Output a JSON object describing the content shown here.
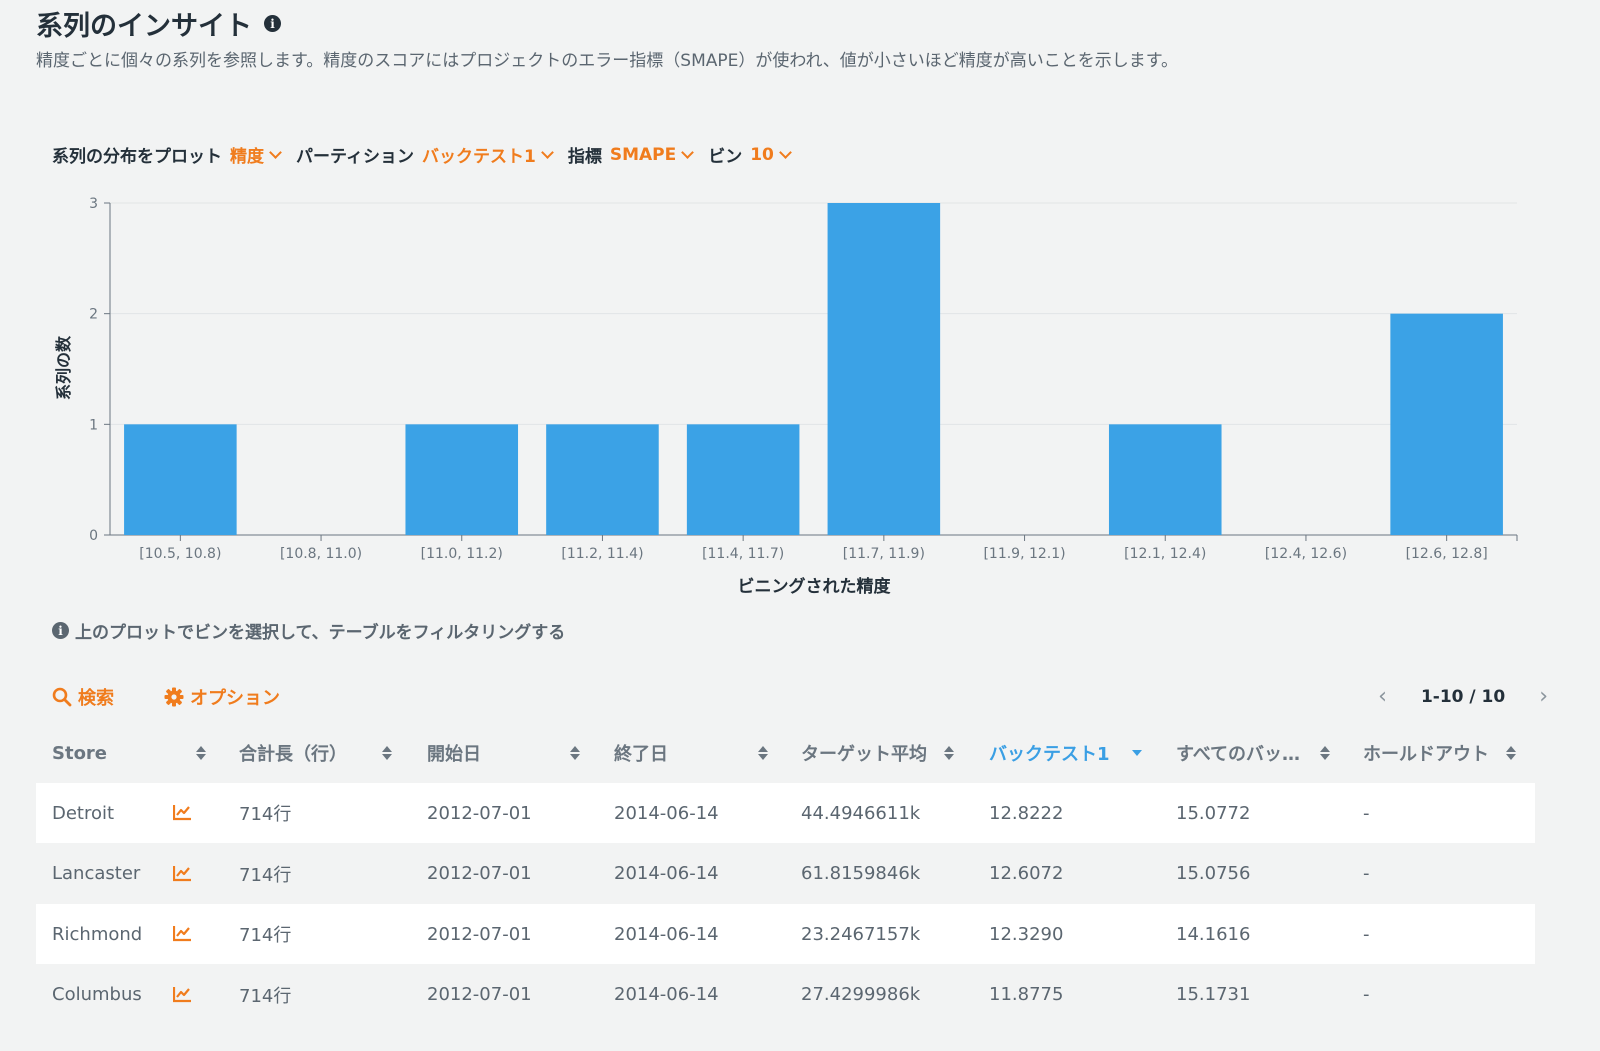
{
  "header": {
    "title": "系列のインサイト",
    "info_glyph": "i",
    "subtitle": "精度ごとに個々の系列を参照します。精度のスコアにはプロジェクトのエラー指標（SMAPE）が使われ、値が小さいほど精度が高いことを示します。"
  },
  "controls": {
    "plot_label": "系列の分布をプロット",
    "plot_value": "精度",
    "partition_label": "パーティション",
    "partition_value": "バックテスト1",
    "metric_label": "指標",
    "metric_value": "SMAPE",
    "bins_label": "ビン",
    "bins_value": "10"
  },
  "chart_data": {
    "type": "bar",
    "categories": [
      "[10.5, 10.8)",
      "[10.8, 11.0)",
      "[11.0, 11.2)",
      "[11.2, 11.4)",
      "[11.4, 11.7)",
      "[11.7, 11.9)",
      "[11.9, 12.1)",
      "[12.1, 12.4)",
      "[12.4, 12.6)",
      "[12.6, 12.8]"
    ],
    "values": [
      1,
      0,
      1,
      1,
      1,
      3,
      0,
      1,
      0,
      2
    ],
    "xlabel": "ビニングされた精度",
    "ylabel": "系列の数",
    "ylim": [
      0,
      3
    ],
    "yticks": [
      0,
      1,
      2,
      3
    ],
    "grid": true,
    "bar_color": "#3ba2e6"
  },
  "hint": {
    "text": "上のプロットでビンを選択して、テーブルをフィルタリングする"
  },
  "toolbar": {
    "search_label": "検索",
    "options_label": "オプション"
  },
  "pager": {
    "text": "1-10 / 10",
    "prev": "‹",
    "next": "›"
  },
  "table": {
    "columns": [
      "Store",
      "合計長（行）",
      "開始日",
      "終了日",
      "ターゲット平均",
      "バックテスト1",
      "すべてのバッ…",
      "ホールドアウト"
    ],
    "active_sort_column": "バックテスト1",
    "rows": [
      [
        "Detroit",
        "714行",
        "2012-07-01",
        "2014-06-14",
        "44.4946611k",
        "12.8222",
        "15.0772",
        "-"
      ],
      [
        "Lancaster",
        "714行",
        "2012-07-01",
        "2014-06-14",
        "61.8159846k",
        "12.6072",
        "15.0756",
        "-"
      ],
      [
        "Richmond",
        "714行",
        "2012-07-01",
        "2014-06-14",
        "23.2467157k",
        "12.3290",
        "14.1616",
        "-"
      ],
      [
        "Columbus",
        "714行",
        "2012-07-01",
        "2014-06-14",
        "27.4299986k",
        "11.8775",
        "15.1731",
        "-"
      ]
    ]
  },
  "colors": {
    "accent": "#f07c1d",
    "bar": "#3ba2e6",
    "active_column": "#3a9fe4"
  }
}
